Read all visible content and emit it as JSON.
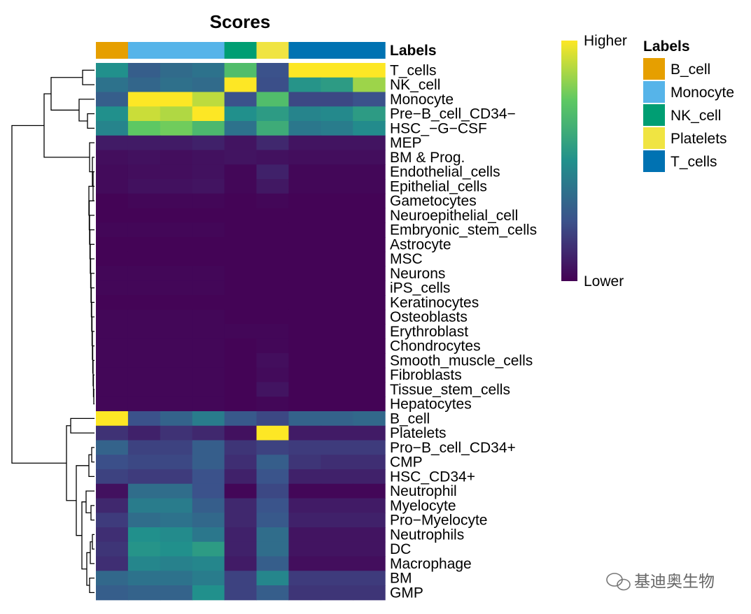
{
  "chart_data": {
    "type": "heatmap",
    "title": "Scores",
    "columns": [
      "B_cell",
      "Monocyte",
      "Monocyte",
      "Monocyte",
      "NK_cell",
      "Platelets",
      "T_cells",
      "T_cells",
      "T_cells"
    ],
    "column_annotation_label": "Labels",
    "rows": [
      "T_cells",
      "NK_cell",
      "Monocyte",
      "Pre−B_cell_CD34−",
      "HSC_−G−CSF",
      "MEP",
      "BM & Prog.",
      "Endothelial_cells",
      "Epithelial_cells",
      "Gametocytes",
      "Neuroepithelial_cell",
      "Embryonic_stem_cells",
      "Astrocyte",
      "MSC",
      "Neurons",
      "iPS_cells",
      "Keratinocytes",
      "Osteoblasts",
      "Erythroblast",
      "Chondrocytes",
      "Smooth_muscle_cells",
      "Fibroblasts",
      "Tissue_stem_cells",
      "Hepatocytes",
      "B_cell",
      "Platelets",
      "Pro−B_cell_CD34+",
      "CMP",
      "HSC_CD34+",
      "Neutrophil",
      "Myelocyte",
      "Pro−Myelocyte",
      "Neutrophils",
      "DC",
      "Macrophage",
      "BM",
      "GMP"
    ],
    "values": [
      [
        0.5,
        0.3,
        0.35,
        0.38,
        0.7,
        0.25,
        1.0,
        1.0,
        1.0
      ],
      [
        0.38,
        0.33,
        0.37,
        0.35,
        1.0,
        0.24,
        0.52,
        0.55,
        0.85
      ],
      [
        0.3,
        1.0,
        1.0,
        0.9,
        0.25,
        0.7,
        0.22,
        0.22,
        0.25
      ],
      [
        0.5,
        0.92,
        0.88,
        1.0,
        0.5,
        0.55,
        0.45,
        0.47,
        0.55
      ],
      [
        0.45,
        0.75,
        0.78,
        0.68,
        0.38,
        0.62,
        0.4,
        0.42,
        0.48
      ],
      [
        0.08,
        0.08,
        0.08,
        0.1,
        0.06,
        0.12,
        0.06,
        0.06,
        0.06
      ],
      [
        0.04,
        0.05,
        0.04,
        0.05,
        0.06,
        0.05,
        0.04,
        0.04,
        0.04
      ],
      [
        0.03,
        0.04,
        0.04,
        0.05,
        0.02,
        0.1,
        0.02,
        0.02,
        0.02
      ],
      [
        0.03,
        0.05,
        0.05,
        0.06,
        0.02,
        0.07,
        0.02,
        0.02,
        0.02
      ],
      [
        0.01,
        0.02,
        0.02,
        0.02,
        0.01,
        0.02,
        0.01,
        0.01,
        0.01
      ],
      [
        0.01,
        0.01,
        0.01,
        0.01,
        0.01,
        0.01,
        0.01,
        0.01,
        0.01
      ],
      [
        0.02,
        0.02,
        0.02,
        0.02,
        0.01,
        0.01,
        0.01,
        0.01,
        0.01
      ],
      [
        0.01,
        0.01,
        0.01,
        0.01,
        0.01,
        0.01,
        0.01,
        0.01,
        0.01
      ],
      [
        0.01,
        0.01,
        0.01,
        0.01,
        0.01,
        0.01,
        0.01,
        0.01,
        0.01
      ],
      [
        0.02,
        0.02,
        0.02,
        0.02,
        0.01,
        0.01,
        0.01,
        0.01,
        0.01
      ],
      [
        0.02,
        0.02,
        0.02,
        0.02,
        0.01,
        0.01,
        0.01,
        0.01,
        0.01
      ],
      [
        0.01,
        0.01,
        0.01,
        0.01,
        0.01,
        0.01,
        0.01,
        0.01,
        0.01
      ],
      [
        0.02,
        0.02,
        0.02,
        0.02,
        0.01,
        0.01,
        0.01,
        0.01,
        0.01
      ],
      [
        0.02,
        0.02,
        0.02,
        0.02,
        0.02,
        0.02,
        0.01,
        0.01,
        0.01
      ],
      [
        0.02,
        0.02,
        0.02,
        0.02,
        0.01,
        0.02,
        0.01,
        0.01,
        0.01
      ],
      [
        0.02,
        0.02,
        0.02,
        0.02,
        0.01,
        0.04,
        0.01,
        0.01,
        0.01
      ],
      [
        0.02,
        0.02,
        0.02,
        0.02,
        0.01,
        0.03,
        0.01,
        0.01,
        0.01
      ],
      [
        0.02,
        0.02,
        0.02,
        0.02,
        0.01,
        0.06,
        0.01,
        0.01,
        0.01
      ],
      [
        0.02,
        0.02,
        0.02,
        0.02,
        0.01,
        0.02,
        0.01,
        0.01,
        0.01
      ],
      [
        1.0,
        0.25,
        0.32,
        0.42,
        0.28,
        0.22,
        0.32,
        0.32,
        0.34
      ],
      [
        0.15,
        0.1,
        0.15,
        0.12,
        0.05,
        1.0,
        0.08,
        0.08,
        0.08
      ],
      [
        0.32,
        0.2,
        0.2,
        0.3,
        0.16,
        0.2,
        0.18,
        0.18,
        0.18
      ],
      [
        0.24,
        0.22,
        0.22,
        0.3,
        0.14,
        0.3,
        0.16,
        0.14,
        0.14
      ],
      [
        0.2,
        0.18,
        0.18,
        0.25,
        0.1,
        0.26,
        0.1,
        0.1,
        0.1
      ],
      [
        0.05,
        0.36,
        0.36,
        0.25,
        0.02,
        0.22,
        0.02,
        0.02,
        0.02
      ],
      [
        0.12,
        0.42,
        0.42,
        0.3,
        0.12,
        0.26,
        0.08,
        0.08,
        0.08
      ],
      [
        0.18,
        0.36,
        0.38,
        0.34,
        0.12,
        0.28,
        0.1,
        0.1,
        0.1
      ],
      [
        0.14,
        0.5,
        0.48,
        0.4,
        0.1,
        0.36,
        0.06,
        0.06,
        0.06
      ],
      [
        0.16,
        0.52,
        0.5,
        0.55,
        0.1,
        0.36,
        0.06,
        0.06,
        0.06
      ],
      [
        0.14,
        0.46,
        0.44,
        0.46,
        0.08,
        0.3,
        0.04,
        0.04,
        0.04
      ],
      [
        0.34,
        0.38,
        0.38,
        0.42,
        0.2,
        0.46,
        0.18,
        0.18,
        0.18
      ],
      [
        0.3,
        0.32,
        0.32,
        0.5,
        0.2,
        0.3,
        0.16,
        0.16,
        0.16
      ]
    ],
    "color_scale": {
      "low_label": "Lower",
      "high_label": "Higher",
      "colors": [
        "#440154",
        "#3b528b",
        "#21908c",
        "#5dc863",
        "#fde725"
      ]
    },
    "legend": {
      "title": "Labels",
      "items": [
        {
          "name": "B_cell",
          "color": "#e69f00"
        },
        {
          "name": "Monocyte",
          "color": "#56b4e9"
        },
        {
          "name": "NK_cell",
          "color": "#009e73"
        },
        {
          "name": "Platelets",
          "color": "#f0e442"
        },
        {
          "name": "T_cells",
          "color": "#0072b2"
        }
      ]
    },
    "row_dendrogram": true
  },
  "watermark": "基迪奥生物"
}
